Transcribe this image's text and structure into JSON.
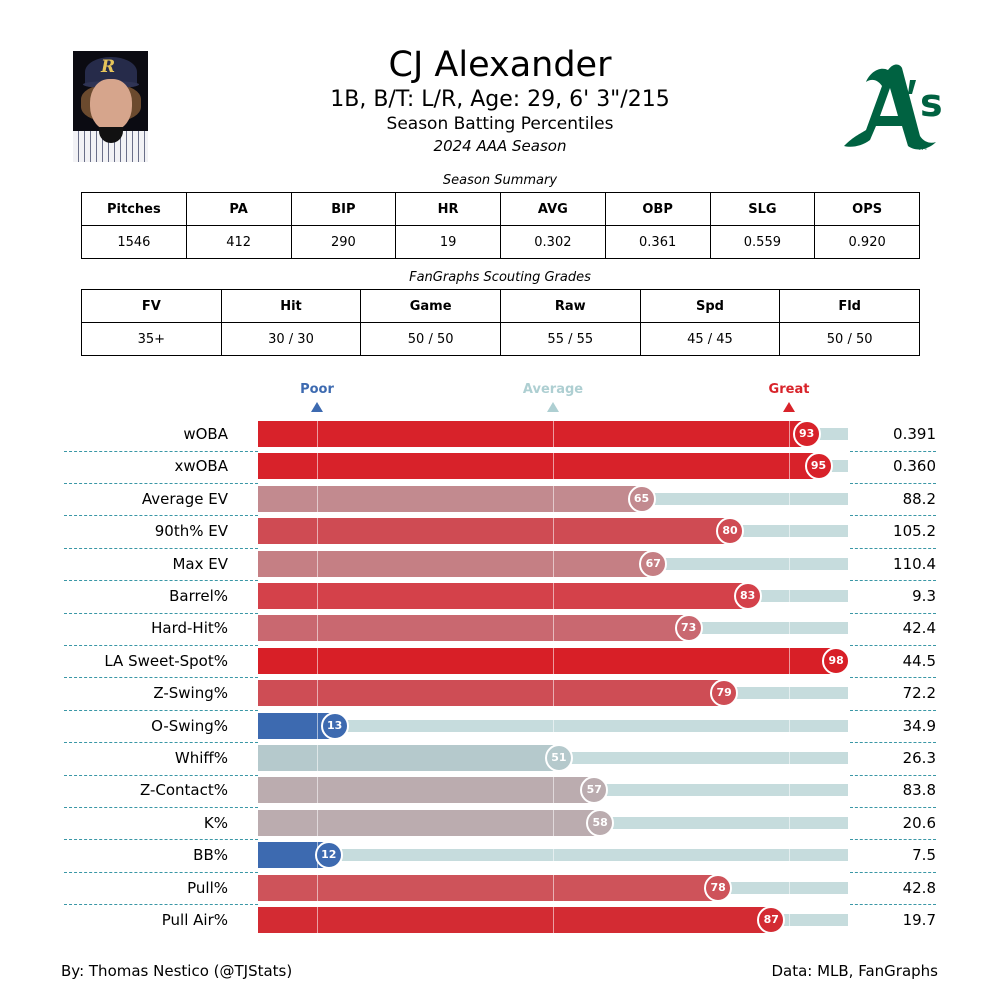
{
  "header": {
    "player_name": "CJ Alexander",
    "bio_line": "1B, B/T: L/R, Age: 29, 6' 3\"/215",
    "report_title": "Season Batting Percentiles",
    "season_label": "2024 AAA Season",
    "team_logo": "athletics-logo",
    "logo_color": "#006241"
  },
  "season_summary": {
    "caption": "Season Summary",
    "columns": [
      "Pitches",
      "PA",
      "BIP",
      "HR",
      "AVG",
      "OBP",
      "SLG",
      "OPS"
    ],
    "values": [
      "1546",
      "412",
      "290",
      "19",
      "0.302",
      "0.361",
      "0.559",
      "0.920"
    ]
  },
  "scouting_grades": {
    "caption": "FanGraphs Scouting Grades",
    "columns": [
      "FV",
      "Hit",
      "Game",
      "Raw",
      "Spd",
      "Fld"
    ],
    "values": [
      "35+",
      "30 / 30",
      "50 / 50",
      "55 / 55",
      "45 / 45",
      "50 / 50"
    ]
  },
  "legend": {
    "poor": {
      "label": "Poor",
      "color": "#3d6ab0",
      "at": 10
    },
    "average": {
      "label": "Average",
      "color": "#aecfd2",
      "at": 50
    },
    "great": {
      "label": "Great",
      "color": "#d8232a",
      "at": 90
    }
  },
  "chart_data": {
    "type": "bar",
    "title": "Season Batting Percentiles",
    "orientation": "horizontal",
    "xlim": [
      0,
      100
    ],
    "reference_lines": [
      10,
      50,
      90
    ],
    "categories": [
      "wOBA",
      "xwOBA",
      "Average EV",
      "90th% EV",
      "Max EV",
      "Barrel%",
      "Hard-Hit%",
      "LA Sweet-Spot%",
      "Z-Swing%",
      "O-Swing%",
      "Whiff%",
      "Z-Contact%",
      "K%",
      "BB%",
      "Pull%",
      "Pull Air%"
    ],
    "series": [
      {
        "name": "Percentile",
        "values": [
          93,
          95,
          65,
          80,
          67,
          83,
          73,
          98,
          79,
          13,
          51,
          57,
          58,
          12,
          78,
          87
        ]
      },
      {
        "name": "Stat Value",
        "values": [
          "0.391",
          "0.360",
          "88.2",
          "105.2",
          "110.4",
          "9.3",
          "42.4",
          "44.5",
          "72.2",
          "34.9",
          "26.3",
          "83.8",
          "20.6",
          "7.5",
          "42.8",
          "19.7"
        ]
      }
    ],
    "bar_colors": [
      "#d8222a",
      "#d8222a",
      "#c28a8f",
      "#cf4b53",
      "#c57f84",
      "#d4414a",
      "#c96870",
      "#d81f27",
      "#ce4d55",
      "#3d6ab0",
      "#b5c9cc",
      "#bbacaf",
      "#bbacaf",
      "#3d6ab0",
      "#ce535a",
      "#d32b33"
    ]
  },
  "footer": {
    "credit": "By: Thomas Nestico (@TJStats)",
    "source": "Data: MLB, FanGraphs"
  }
}
